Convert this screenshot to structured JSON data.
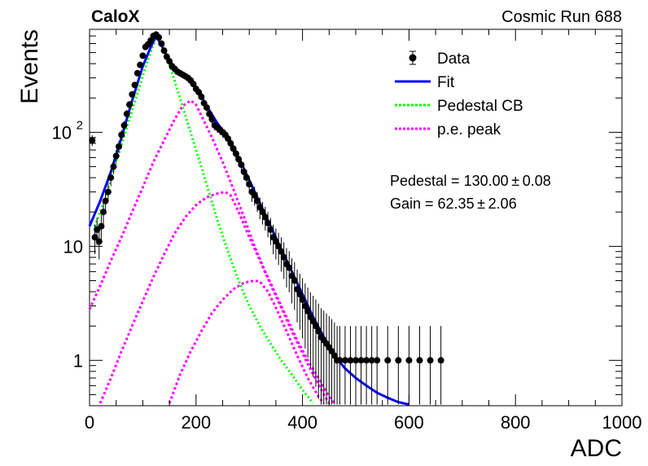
{
  "header": {
    "experiment": "CaloX",
    "run_label": "Cosmic Run 688"
  },
  "chart_data": {
    "type": "scatter",
    "title": "",
    "xlabel": "ADC",
    "ylabel": "Events",
    "xlim": [
      0,
      1000
    ],
    "ylim": [
      0.4,
      800
    ],
    "log_y": true,
    "grid": false,
    "legend_position": "top-right",
    "x_ticks": [
      "0",
      "200",
      "400",
      "600",
      "800",
      "1000"
    ],
    "y_ticks": [
      "1",
      "10",
      "10"
    ],
    "y_tick_values": [
      1,
      10,
      100
    ],
    "y_tick_exponent": "2",
    "colors": {
      "data": "#000000",
      "fit": "#0000ff",
      "pedestal": "#00ff00",
      "pe_peak": "#ff00ff"
    },
    "legend": [
      {
        "label": "Data",
        "kind": "marker"
      },
      {
        "label": "Fit",
        "kind": "line"
      },
      {
        "label": "Pedestal CB",
        "kind": "dashed"
      },
      {
        "label": "p.e. peak",
        "kind": "dashed"
      }
    ],
    "annotations": [
      {
        "text": "Pedestal = 130.00 ± 0.08"
      },
      {
        "text": "Gain = 62.35 ± 2.06"
      }
    ],
    "data_points": [
      {
        "x": 5,
        "y": 85
      },
      {
        "x": 10,
        "y": 12
      },
      {
        "x": 14,
        "y": 14
      },
      {
        "x": 18,
        "y": 11
      },
      {
        "x": 22,
        "y": 15
      },
      {
        "x": 26,
        "y": 20
      },
      {
        "x": 30,
        "y": 25
      },
      {
        "x": 35,
        "y": 30
      },
      {
        "x": 40,
        "y": 40
      },
      {
        "x": 45,
        "y": 50
      },
      {
        "x": 50,
        "y": 62
      },
      {
        "x": 55,
        "y": 75
      },
      {
        "x": 60,
        "y": 95
      },
      {
        "x": 65,
        "y": 115
      },
      {
        "x": 70,
        "y": 145
      },
      {
        "x": 75,
        "y": 175
      },
      {
        "x": 80,
        "y": 215
      },
      {
        "x": 85,
        "y": 260
      },
      {
        "x": 90,
        "y": 330
      },
      {
        "x": 95,
        "y": 390
      },
      {
        "x": 100,
        "y": 470
      },
      {
        "x": 105,
        "y": 560
      },
      {
        "x": 110,
        "y": 590
      },
      {
        "x": 115,
        "y": 640
      },
      {
        "x": 120,
        "y": 700
      },
      {
        "x": 125,
        "y": 720
      },
      {
        "x": 130,
        "y": 680
      },
      {
        "x": 135,
        "y": 600
      },
      {
        "x": 140,
        "y": 520
      },
      {
        "x": 145,
        "y": 460
      },
      {
        "x": 150,
        "y": 420
      },
      {
        "x": 155,
        "y": 380
      },
      {
        "x": 160,
        "y": 360
      },
      {
        "x": 165,
        "y": 340
      },
      {
        "x": 170,
        "y": 330
      },
      {
        "x": 175,
        "y": 320
      },
      {
        "x": 180,
        "y": 310
      },
      {
        "x": 185,
        "y": 300
      },
      {
        "x": 190,
        "y": 285
      },
      {
        "x": 195,
        "y": 265
      },
      {
        "x": 200,
        "y": 240
      },
      {
        "x": 205,
        "y": 225
      },
      {
        "x": 210,
        "y": 205
      },
      {
        "x": 215,
        "y": 180
      },
      {
        "x": 220,
        "y": 165
      },
      {
        "x": 225,
        "y": 145
      },
      {
        "x": 230,
        "y": 130
      },
      {
        "x": 235,
        "y": 115
      },
      {
        "x": 240,
        "y": 110
      },
      {
        "x": 245,
        "y": 105
      },
      {
        "x": 250,
        "y": 100
      },
      {
        "x": 255,
        "y": 95
      },
      {
        "x": 260,
        "y": 88
      },
      {
        "x": 265,
        "y": 80
      },
      {
        "x": 270,
        "y": 72
      },
      {
        "x": 275,
        "y": 65
      },
      {
        "x": 280,
        "y": 58
      },
      {
        "x": 285,
        "y": 52
      },
      {
        "x": 290,
        "y": 45
      },
      {
        "x": 295,
        "y": 40
      },
      {
        "x": 300,
        "y": 35
      },
      {
        "x": 305,
        "y": 30
      },
      {
        "x": 310,
        "y": 28
      },
      {
        "x": 315,
        "y": 25
      },
      {
        "x": 320,
        "y": 22
      },
      {
        "x": 325,
        "y": 20
      },
      {
        "x": 330,
        "y": 18
      },
      {
        "x": 335,
        "y": 16
      },
      {
        "x": 340,
        "y": 14
      },
      {
        "x": 345,
        "y": 12
      },
      {
        "x": 350,
        "y": 11
      },
      {
        "x": 355,
        "y": 10
      },
      {
        "x": 360,
        "y": 9
      },
      {
        "x": 365,
        "y": 8
      },
      {
        "x": 370,
        "y": 7
      },
      {
        "x": 375,
        "y": 6.5
      },
      {
        "x": 380,
        "y": 5.5
      },
      {
        "x": 385,
        "y": 5
      },
      {
        "x": 390,
        "y": 4.2
      },
      {
        "x": 395,
        "y": 3.8
      },
      {
        "x": 400,
        "y": 3.4
      },
      {
        "x": 405,
        "y": 3
      },
      {
        "x": 410,
        "y": 2.7
      },
      {
        "x": 415,
        "y": 2.4
      },
      {
        "x": 420,
        "y": 2.2
      },
      {
        "x": 425,
        "y": 2
      },
      {
        "x": 430,
        "y": 1.8
      },
      {
        "x": 435,
        "y": 1.6
      },
      {
        "x": 440,
        "y": 1.5
      },
      {
        "x": 445,
        "y": 1.4
      },
      {
        "x": 450,
        "y": 1.3
      },
      {
        "x": 455,
        "y": 1.2
      },
      {
        "x": 460,
        "y": 1.1
      },
      {
        "x": 465,
        "y": 1.0
      },
      {
        "x": 470,
        "y": 1.0
      },
      {
        "x": 480,
        "y": 1.0
      },
      {
        "x": 490,
        "y": 1.0
      },
      {
        "x": 500,
        "y": 1.0
      },
      {
        "x": 510,
        "y": 1.0
      },
      {
        "x": 520,
        "y": 1.0
      },
      {
        "x": 530,
        "y": 1.0
      },
      {
        "x": 540,
        "y": 1.0
      },
      {
        "x": 560,
        "y": 1.0
      },
      {
        "x": 580,
        "y": 1.0
      },
      {
        "x": 600,
        "y": 1.0
      },
      {
        "x": 620,
        "y": 1.0
      },
      {
        "x": 640,
        "y": 1.0
      },
      {
        "x": 660,
        "y": 1.0
      }
    ],
    "fit_curve": [
      {
        "x": 0,
        "y": 15
      },
      {
        "x": 20,
        "y": 25
      },
      {
        "x": 40,
        "y": 45
      },
      {
        "x": 60,
        "y": 90
      },
      {
        "x": 80,
        "y": 190
      },
      {
        "x": 100,
        "y": 380
      },
      {
        "x": 115,
        "y": 560
      },
      {
        "x": 125,
        "y": 700
      },
      {
        "x": 135,
        "y": 580
      },
      {
        "x": 150,
        "y": 420
      },
      {
        "x": 165,
        "y": 350
      },
      {
        "x": 180,
        "y": 310
      },
      {
        "x": 200,
        "y": 250
      },
      {
        "x": 220,
        "y": 170
      },
      {
        "x": 240,
        "y": 120
      },
      {
        "x": 260,
        "y": 90
      },
      {
        "x": 280,
        "y": 60
      },
      {
        "x": 300,
        "y": 38
      },
      {
        "x": 320,
        "y": 24
      },
      {
        "x": 340,
        "y": 15
      },
      {
        "x": 360,
        "y": 9.5
      },
      {
        "x": 380,
        "y": 6
      },
      {
        "x": 400,
        "y": 3.8
      },
      {
        "x": 420,
        "y": 2.4
      },
      {
        "x": 440,
        "y": 1.6
      },
      {
        "x": 460,
        "y": 1.1
      },
      {
        "x": 480,
        "y": 0.85
      },
      {
        "x": 500,
        "y": 0.7
      },
      {
        "x": 520,
        "y": 0.6
      },
      {
        "x": 540,
        "y": 0.52
      },
      {
        "x": 560,
        "y": 0.47
      },
      {
        "x": 580,
        "y": 0.43
      },
      {
        "x": 600,
        "y": 0.41
      }
    ],
    "pedestal_cb": [
      {
        "x": 10,
        "y": 15
      },
      {
        "x": 30,
        "y": 27
      },
      {
        "x": 50,
        "y": 55
      },
      {
        "x": 70,
        "y": 110
      },
      {
        "x": 90,
        "y": 220
      },
      {
        "x": 110,
        "y": 440
      },
      {
        "x": 125,
        "y": 680
      },
      {
        "x": 130,
        "y": 700
      },
      {
        "x": 140,
        "y": 560
      },
      {
        "x": 160,
        "y": 280
      },
      {
        "x": 180,
        "y": 140
      },
      {
        "x": 200,
        "y": 70
      },
      {
        "x": 220,
        "y": 35
      },
      {
        "x": 240,
        "y": 17
      },
      {
        "x": 260,
        "y": 9
      },
      {
        "x": 280,
        "y": 5
      },
      {
        "x": 300,
        "y": 3
      },
      {
        "x": 320,
        "y": 2
      },
      {
        "x": 340,
        "y": 1.4
      },
      {
        "x": 360,
        "y": 1.0
      },
      {
        "x": 380,
        "y": 0.75
      },
      {
        "x": 400,
        "y": 0.55
      },
      {
        "x": 420,
        "y": 0.42
      }
    ],
    "pe_peaks": [
      {
        "points": [
          {
            "x": 0,
            "y": 2.8
          },
          {
            "x": 20,
            "y": 4.5
          },
          {
            "x": 40,
            "y": 7.5
          },
          {
            "x": 60,
            "y": 12
          },
          {
            "x": 80,
            "y": 20
          },
          {
            "x": 100,
            "y": 33
          },
          {
            "x": 120,
            "y": 55
          },
          {
            "x": 140,
            "y": 85
          },
          {
            "x": 160,
            "y": 130
          },
          {
            "x": 175,
            "y": 170
          },
          {
            "x": 190,
            "y": 190
          },
          {
            "x": 200,
            "y": 175
          },
          {
            "x": 210,
            "y": 140
          },
          {
            "x": 230,
            "y": 90
          },
          {
            "x": 250,
            "y": 55
          },
          {
            "x": 270,
            "y": 32
          },
          {
            "x": 290,
            "y": 18
          },
          {
            "x": 310,
            "y": 10
          },
          {
            "x": 330,
            "y": 6
          },
          {
            "x": 350,
            "y": 3.8
          },
          {
            "x": 370,
            "y": 2.4
          },
          {
            "x": 390,
            "y": 1.5
          },
          {
            "x": 410,
            "y": 1.0
          },
          {
            "x": 430,
            "y": 0.7
          },
          {
            "x": 450,
            "y": 0.48
          },
          {
            "x": 460,
            "y": 0.42
          }
        ]
      },
      {
        "points": [
          {
            "x": 20,
            "y": 0.42
          },
          {
            "x": 40,
            "y": 0.7
          },
          {
            "x": 60,
            "y": 1.2
          },
          {
            "x": 80,
            "y": 2.0
          },
          {
            "x": 100,
            "y": 3.3
          },
          {
            "x": 120,
            "y": 5.4
          },
          {
            "x": 140,
            "y": 8.5
          },
          {
            "x": 160,
            "y": 13
          },
          {
            "x": 180,
            "y": 18
          },
          {
            "x": 200,
            "y": 23
          },
          {
            "x": 220,
            "y": 27
          },
          {
            "x": 240,
            "y": 29
          },
          {
            "x": 255,
            "y": 30
          },
          {
            "x": 265,
            "y": 28
          },
          {
            "x": 280,
            "y": 20
          },
          {
            "x": 300,
            "y": 12
          },
          {
            "x": 320,
            "y": 7.5
          },
          {
            "x": 340,
            "y": 4.6
          },
          {
            "x": 360,
            "y": 2.9
          },
          {
            "x": 380,
            "y": 1.8
          },
          {
            "x": 400,
            "y": 1.15
          },
          {
            "x": 420,
            "y": 0.75
          },
          {
            "x": 440,
            "y": 0.5
          },
          {
            "x": 450,
            "y": 0.42
          }
        ]
      },
      {
        "points": [
          {
            "x": 150,
            "y": 0.42
          },
          {
            "x": 170,
            "y": 0.75
          },
          {
            "x": 190,
            "y": 1.2
          },
          {
            "x": 210,
            "y": 1.8
          },
          {
            "x": 230,
            "y": 2.6
          },
          {
            "x": 250,
            "y": 3.4
          },
          {
            "x": 270,
            "y": 4.2
          },
          {
            "x": 290,
            "y": 4.8
          },
          {
            "x": 310,
            "y": 5.0
          },
          {
            "x": 320,
            "y": 4.9
          },
          {
            "x": 335,
            "y": 4.0
          },
          {
            "x": 350,
            "y": 2.9
          },
          {
            "x": 370,
            "y": 1.8
          },
          {
            "x": 390,
            "y": 1.1
          },
          {
            "x": 410,
            "y": 0.7
          },
          {
            "x": 430,
            "y": 0.48
          },
          {
            "x": 440,
            "y": 0.42
          }
        ]
      }
    ]
  }
}
